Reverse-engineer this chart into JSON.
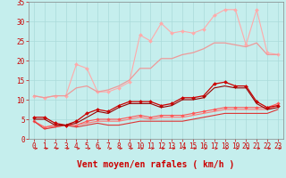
{
  "xlabel": "Vent moyen/en rafales ( km/h )",
  "xlim": [
    -0.5,
    23.5
  ],
  "ylim": [
    0,
    35
  ],
  "yticks": [
    0,
    5,
    10,
    15,
    20,
    25,
    30,
    35
  ],
  "xticks": [
    0,
    1,
    2,
    3,
    4,
    5,
    6,
    7,
    8,
    9,
    10,
    11,
    12,
    13,
    14,
    15,
    16,
    17,
    18,
    19,
    20,
    21,
    22,
    23
  ],
  "bg_color": "#c5eeed",
  "grid_color": "#aadada",
  "lines": [
    {
      "x": [
        0,
        1,
        2,
        3,
        4,
        5,
        6,
        7,
        8,
        9,
        10,
        11,
        12,
        13,
        14,
        15,
        16,
        17,
        18,
        19,
        20,
        21,
        22,
        23
      ],
      "y": [
        11.0,
        10.5,
        11.0,
        11.0,
        19.0,
        18.0,
        12.0,
        12.0,
        13.0,
        14.5,
        26.5,
        25.0,
        29.5,
        27.0,
        27.5,
        27.0,
        28.0,
        31.5,
        33.0,
        33.0,
        24.0,
        33.0,
        22.0,
        21.5
      ],
      "color": "#ffaaaa",
      "marker": "D",
      "markersize": 2.0,
      "linewidth": 0.8,
      "zorder": 2
    },
    {
      "x": [
        0,
        1,
        2,
        3,
        4,
        5,
        6,
        7,
        8,
        9,
        10,
        11,
        12,
        13,
        14,
        15,
        16,
        17,
        18,
        19,
        20,
        21,
        22,
        23
      ],
      "y": [
        11.0,
        10.5,
        11.0,
        11.0,
        13.0,
        13.5,
        12.0,
        12.5,
        13.5,
        15.0,
        18.0,
        18.0,
        20.5,
        20.5,
        21.5,
        22.0,
        23.0,
        24.5,
        24.5,
        24.0,
        23.5,
        24.5,
        21.5,
        21.5
      ],
      "color": "#ee9999",
      "marker": null,
      "linewidth": 0.9,
      "zorder": 2
    },
    {
      "x": [
        0,
        1,
        2,
        3,
        4,
        5,
        6,
        7,
        8,
        9,
        10,
        11,
        12,
        13,
        14,
        15,
        16,
        17,
        18,
        19,
        20,
        21,
        22,
        23
      ],
      "y": [
        5.5,
        5.5,
        4.0,
        3.5,
        4.5,
        6.5,
        7.5,
        7.0,
        8.5,
        9.5,
        9.5,
        9.5,
        8.5,
        9.0,
        10.5,
        10.5,
        11.0,
        14.0,
        14.5,
        13.5,
        13.5,
        9.5,
        8.0,
        8.5
      ],
      "color": "#cc0000",
      "marker": "D",
      "markersize": 2.0,
      "linewidth": 0.9,
      "zorder": 3
    },
    {
      "x": [
        0,
        1,
        2,
        3,
        4,
        5,
        6,
        7,
        8,
        9,
        10,
        11,
        12,
        13,
        14,
        15,
        16,
        17,
        18,
        19,
        20,
        21,
        22,
        23
      ],
      "y": [
        5.0,
        5.0,
        3.5,
        3.5,
        4.0,
        5.5,
        7.0,
        6.5,
        8.0,
        9.0,
        9.0,
        9.0,
        8.0,
        8.5,
        10.0,
        10.0,
        10.5,
        13.0,
        13.5,
        13.0,
        13.0,
        9.0,
        7.5,
        8.0
      ],
      "color": "#990000",
      "marker": null,
      "linewidth": 0.8,
      "zorder": 3
    },
    {
      "x": [
        0,
        1,
        2,
        3,
        4,
        5,
        6,
        7,
        8,
        9,
        10,
        11,
        12,
        13,
        14,
        15,
        16,
        17,
        18,
        19,
        20,
        21,
        22,
        23
      ],
      "y": [
        4.5,
        3.0,
        3.5,
        3.5,
        3.5,
        4.5,
        5.0,
        5.0,
        5.0,
        5.5,
        6.0,
        5.5,
        6.0,
        6.0,
        6.0,
        6.5,
        7.0,
        7.5,
        8.0,
        8.0,
        8.0,
        8.0,
        8.0,
        9.0
      ],
      "color": "#ff5555",
      "marker": "D",
      "markersize": 1.8,
      "linewidth": 0.8,
      "zorder": 2
    },
    {
      "x": [
        0,
        1,
        2,
        3,
        4,
        5,
        6,
        7,
        8,
        9,
        10,
        11,
        12,
        13,
        14,
        15,
        16,
        17,
        18,
        19,
        20,
        21,
        22,
        23
      ],
      "y": [
        4.5,
        3.0,
        3.0,
        3.5,
        3.5,
        4.0,
        4.5,
        4.5,
        4.5,
        5.0,
        5.5,
        5.0,
        5.5,
        5.5,
        5.5,
        6.0,
        6.5,
        7.0,
        7.5,
        7.5,
        7.5,
        7.5,
        7.5,
        8.5
      ],
      "color": "#ff7777",
      "marker": null,
      "linewidth": 0.8,
      "zorder": 2
    },
    {
      "x": [
        0,
        1,
        2,
        3,
        4,
        5,
        6,
        7,
        8,
        9,
        10,
        11,
        12,
        13,
        14,
        15,
        16,
        17,
        18,
        19,
        20,
        21,
        22,
        23
      ],
      "y": [
        4.5,
        2.5,
        3.0,
        3.5,
        3.0,
        3.5,
        4.0,
        3.5,
        3.5,
        4.0,
        4.5,
        4.5,
        4.5,
        4.5,
        4.5,
        5.0,
        5.5,
        6.0,
        6.5,
        6.5,
        6.5,
        6.5,
        6.5,
        7.5
      ],
      "color": "#dd3333",
      "marker": null,
      "linewidth": 0.8,
      "zorder": 2
    }
  ],
  "arrow_color": "#cc2222",
  "xlabel_fontsize": 7,
  "tick_fontsize": 5.5
}
